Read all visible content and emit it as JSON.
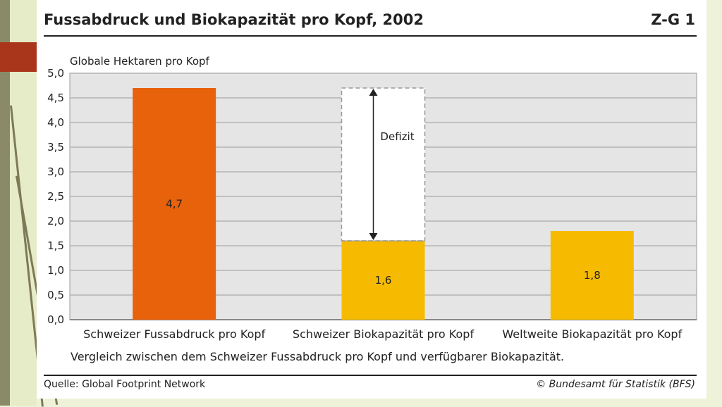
{
  "header": {
    "title": "Fussabdruck und Biokapazität pro Kopf, 2002",
    "code": "Z-G 1"
  },
  "footer": {
    "source": "Quelle: Global Footprint Network",
    "copyright": "© Bundesamt für Statistik (BFS)"
  },
  "caption": "Vergleich zwischen dem Schweizer Fussabdruck pro Kopf und verfügbarer Biokapazität.",
  "colors": {
    "footprint": "#e8620c",
    "biocapacity": "#f6bb00",
    "plot_bg": "#e5e5e5",
    "grid": "#b3b3b3"
  },
  "chart_data": {
    "type": "bar",
    "title": "Fussabdruck und Biokapazität pro Kopf, 2002",
    "ylabel": "Globale Hektaren pro Kopf",
    "xlabel": "",
    "ylim": [
      0,
      5
    ],
    "ytick_step": 0.5,
    "yticks": [
      "0,0",
      "0,5",
      "1,0",
      "1,5",
      "2,0",
      "2,5",
      "3,0",
      "3,5",
      "4,0",
      "4,5",
      "5,0"
    ],
    "grid": true,
    "categories": [
      "Schweizer Fussabdruck pro Kopf",
      "Schweizer Biokapazität pro Kopf",
      "Weltweite Biokapazität pro Kopf"
    ],
    "values": [
      4.7,
      1.6,
      1.8
    ],
    "value_labels": [
      "4,7",
      "1,6",
      "1,8"
    ],
    "bar_colors": [
      "#e8620c",
      "#f6bb00",
      "#f6bb00"
    ],
    "annotation": {
      "label": "Defizit",
      "category_index": 1,
      "from": 1.6,
      "to": 4.7
    }
  }
}
